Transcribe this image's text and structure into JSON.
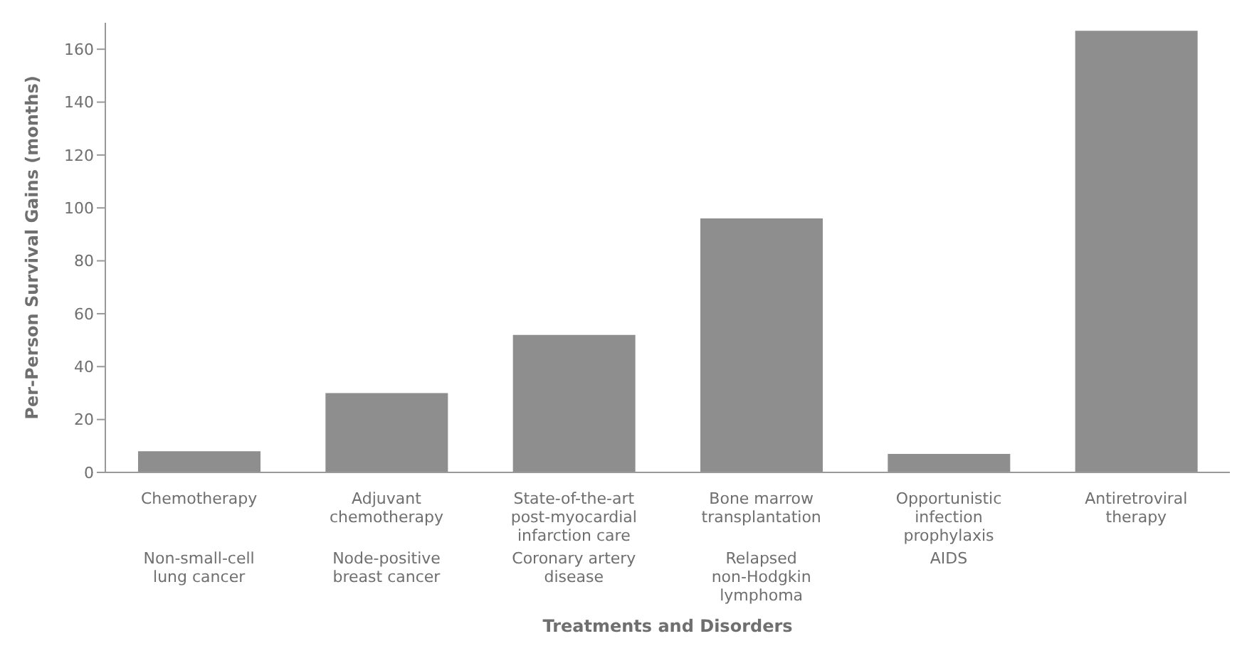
{
  "chart_data": {
    "type": "bar",
    "xlabel": "Treatments and Disorders",
    "ylabel": "Per-Person Survival Gains (months)",
    "categories": [
      "Chemotherapy",
      "Adjuvant chemotherapy",
      "State-of-the-art post-myocardial infarction care",
      "Bone marrow transplantation",
      "Opportunistic infection prophylaxis",
      "Antiretroviral therapy"
    ],
    "values": [
      8,
      30,
      52,
      96,
      7,
      167
    ],
    "color": "#8e8e8e",
    "ylim": [
      0,
      170
    ],
    "yticks": [
      0,
      20,
      40,
      60,
      80,
      100,
      120,
      140,
      160
    ],
    "annotations": [
      "Non-small-cell lung cancer",
      "Node-positive breast cancer",
      "Coronary artery disease",
      "Relapsed non-Hodgkin lymphoma",
      "AIDS"
    ],
    "grid": false,
    "legend": false
  }
}
